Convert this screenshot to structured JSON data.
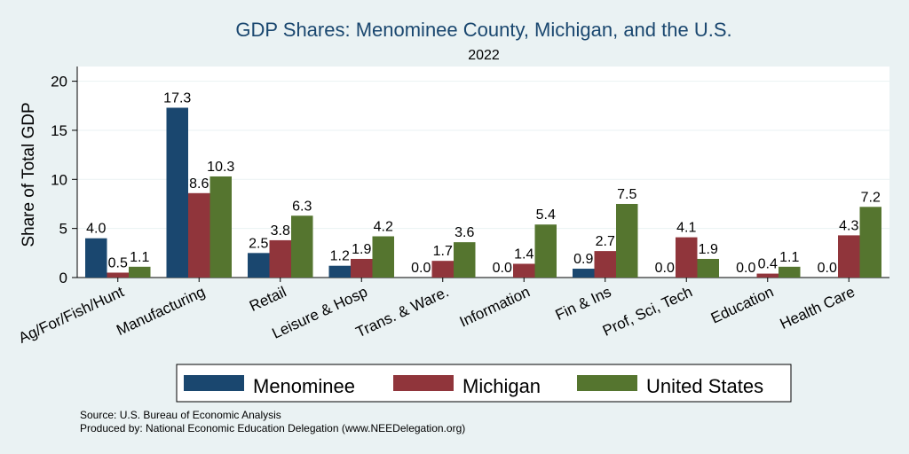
{
  "colors": {
    "background": "#eaf2f3",
    "plot_background": "#ffffff",
    "title": "#1a476f",
    "grid": "#eaf2f3",
    "menominee": "#1a476f",
    "michigan": "#90353b",
    "united_states": "#55752f",
    "text": "#000000"
  },
  "chart_data": {
    "type": "bar",
    "title": "GDP Shares: Menominee County, Michigan, and the U.S.",
    "subtitle": "2022",
    "xlabel": "",
    "ylabel": "Share of Total GDP",
    "ylim": [
      0,
      21.5
    ],
    "yticks": [
      0,
      5,
      10,
      15,
      20
    ],
    "grid": true,
    "legend_position": "bottom",
    "categories": [
      "Ag/For/Fish/Hunt",
      "Manufacturing",
      "Retail",
      "Leisure & Hosp",
      "Trans. & Ware.",
      "Information",
      "Fin & Ins",
      "Prof, Sci, Tech",
      "Education",
      "Health Care"
    ],
    "series": [
      {
        "name": "Menominee",
        "color_key": "menominee",
        "values": [
          4.0,
          17.3,
          2.5,
          1.2,
          0.0,
          0.0,
          0.9,
          0.0,
          0.0,
          0.0
        ],
        "labels": [
          "4.0",
          "17.3",
          "2.5",
          "1.2",
          "0.0",
          "0.0",
          "0.9",
          "0.0",
          "0.0",
          "0.0"
        ]
      },
      {
        "name": "Michigan",
        "color_key": "michigan",
        "values": [
          0.5,
          8.6,
          3.8,
          1.9,
          1.7,
          1.4,
          2.7,
          4.1,
          0.4,
          4.3
        ],
        "labels": [
          "0.5",
          "8.6",
          "3.8",
          "1.9",
          "1.7",
          "1.4",
          "2.7",
          "4.1",
          "0.4",
          "4.3"
        ]
      },
      {
        "name": "United States",
        "color_key": "united_states",
        "values": [
          1.1,
          10.3,
          6.3,
          4.2,
          3.6,
          5.4,
          7.5,
          1.9,
          1.1,
          7.2
        ],
        "labels": [
          "1.1",
          "10.3",
          "6.3",
          "4.2",
          "3.6",
          "5.4",
          "7.5",
          "1.9",
          "1.1",
          "7.2"
        ]
      }
    ]
  },
  "footer": {
    "source": "Source: U.S. Bureau of Economic Analysis",
    "produced_by": "Produced by: National Economic Education Delegation (www.NEEDelegation.org)"
  }
}
